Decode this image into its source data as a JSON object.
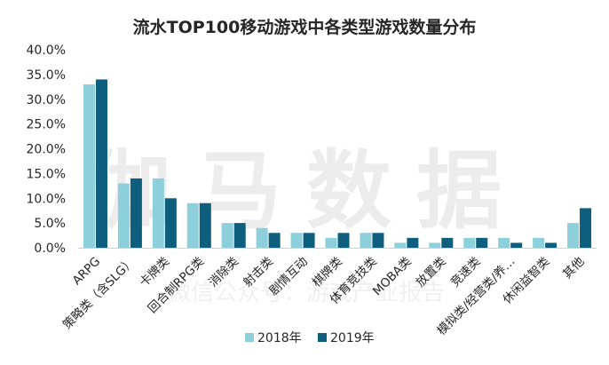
{
  "chart_data": {
    "type": "bar",
    "title": "流水TOP100移动游戏中各类型游戏数量分布",
    "categories": [
      "ARPG",
      "策略类（含SLG）",
      "卡牌类",
      "回合制RPG类",
      "消除类",
      "射击类",
      "剧情互动",
      "棋牌类",
      "体育竞技类",
      "MOBA类",
      "放置类",
      "竞速类",
      "模拟类/经营类/养…",
      "休闲益智类",
      "其他"
    ],
    "series": [
      {
        "name": "2018年",
        "color": "#8ecfdc",
        "values": [
          33,
          13,
          14,
          9,
          5,
          4,
          3,
          2,
          3,
          1,
          1,
          2,
          2,
          2,
          5
        ]
      },
      {
        "name": "2019年",
        "color": "#0e5f7e",
        "values": [
          34,
          14,
          10,
          9,
          5,
          3,
          3,
          3,
          3,
          2,
          2,
          2,
          1,
          1,
          8
        ]
      }
    ],
    "yticks": [
      "0.0%",
      "5.0%",
      "10.0%",
      "15.0%",
      "20.0%",
      "25.0%",
      "30.0%",
      "35.0%",
      "40.0%"
    ],
    "ylim": [
      0,
      40
    ],
    "xlabel": "",
    "ylabel": "",
    "legend_position": "bottom",
    "grid": false
  },
  "watermark": {
    "main": "伽马数据",
    "sub": "微信公众号：游戏产业报告"
  }
}
